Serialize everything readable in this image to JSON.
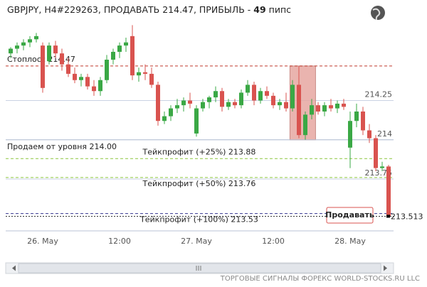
{
  "header": {
    "title": "GBPJPY, H4#229263, ПРОДАВАТЬ 214.47, ПРИБЫЛЬ -",
    "profit": 49,
    "unit": "пипс"
  },
  "chart_data": {
    "type": "candlestick",
    "categories": [
      null,
      null,
      null,
      null,
      null,
      "26. May",
      null,
      null,
      null,
      null,
      null,
      null,
      null,
      null,
      null,
      null,
      null,
      "12:00",
      null,
      null,
      null,
      null,
      null,
      null,
      null,
      null,
      null,
      null,
      null,
      "27. May",
      null,
      null,
      null,
      null,
      null,
      null,
      null,
      null,
      null,
      null,
      null,
      "12:00",
      null,
      null,
      null,
      null,
      null,
      null,
      null,
      null,
      null,
      null,
      null,
      "28. May",
      null,
      null,
      null,
      null,
      null,
      null
    ],
    "ohlc": [
      [
        214.55,
        214.59,
        214.52,
        214.58
      ],
      [
        214.58,
        214.62,
        214.55,
        214.6
      ],
      [
        214.6,
        214.64,
        214.57,
        214.62
      ],
      [
        214.62,
        214.66,
        214.59,
        214.64
      ],
      [
        214.64,
        214.68,
        214.62,
        214.66
      ],
      [
        214.6,
        214.62,
        214.3,
        214.33
      ],
      [
        214.5,
        214.62,
        214.48,
        214.6
      ],
      [
        214.6,
        214.63,
        214.52,
        214.55
      ],
      [
        214.55,
        214.58,
        214.44,
        214.48
      ],
      [
        214.48,
        214.52,
        214.4,
        214.42
      ],
      [
        214.42,
        214.46,
        214.36,
        214.38
      ],
      [
        214.38,
        214.42,
        214.34,
        214.4
      ],
      [
        214.4,
        214.42,
        214.32,
        214.34
      ],
      [
        214.34,
        214.38,
        214.28,
        214.31
      ],
      [
        214.31,
        214.4,
        214.28,
        214.38
      ],
      [
        214.38,
        214.54,
        214.36,
        214.51
      ],
      [
        214.51,
        214.58,
        214.48,
        214.56
      ],
      [
        214.56,
        214.62,
        214.52,
        214.6
      ],
      [
        214.6,
        214.65,
        214.56,
        214.62
      ],
      [
        214.66,
        214.73,
        214.38,
        214.41
      ],
      [
        214.41,
        214.46,
        214.37,
        214.43
      ],
      [
        214.43,
        214.48,
        214.38,
        214.42
      ],
      [
        214.42,
        214.46,
        214.33,
        214.35
      ],
      [
        214.35,
        214.37,
        214.09,
        214.12
      ],
      [
        214.12,
        214.18,
        214.1,
        214.15
      ],
      [
        214.15,
        214.22,
        214.12,
        214.2
      ],
      [
        214.2,
        214.26,
        214.17,
        214.22
      ],
      [
        214.22,
        214.27,
        214.18,
        214.25
      ],
      [
        214.25,
        214.3,
        214.2,
        214.23
      ],
      [
        214.04,
        214.22,
        214.02,
        214.2
      ],
      [
        214.2,
        214.26,
        214.18,
        214.24
      ],
      [
        214.24,
        214.28,
        214.2,
        214.27
      ],
      [
        214.27,
        214.34,
        214.24,
        214.31
      ],
      [
        214.31,
        214.33,
        214.18,
        214.21
      ],
      [
        214.21,
        214.26,
        214.19,
        214.24
      ],
      [
        214.24,
        214.26,
        214.2,
        214.22
      ],
      [
        214.22,
        214.32,
        214.2,
        214.3
      ],
      [
        214.3,
        214.38,
        214.28,
        214.35
      ],
      [
        214.35,
        214.37,
        214.22,
        214.25
      ],
      [
        214.25,
        214.33,
        214.23,
        214.31
      ],
      [
        214.31,
        214.34,
        214.26,
        214.28
      ],
      [
        214.28,
        214.3,
        214.2,
        214.22
      ],
      [
        214.22,
        214.26,
        214.19,
        214.24
      ],
      [
        214.24,
        214.3,
        214.18,
        214.2
      ],
      [
        214.2,
        214.38,
        214.18,
        214.35
      ],
      [
        214.35,
        214.47,
        214.01,
        214.03
      ],
      [
        214.03,
        214.18,
        214.0,
        214.16
      ],
      [
        214.16,
        214.26,
        214.13,
        214.22
      ],
      [
        214.22,
        214.24,
        214.16,
        214.18
      ],
      [
        214.18,
        214.24,
        214.15,
        214.22
      ],
      [
        214.22,
        214.26,
        214.18,
        214.2
      ],
      [
        214.2,
        214.25,
        214.17,
        214.23
      ],
      [
        214.23,
        214.26,
        214.19,
        214.21
      ],
      [
        213.95,
        214.18,
        213.82,
        214.12
      ],
      [
        214.12,
        214.23,
        214.08,
        214.18
      ],
      [
        214.18,
        214.21,
        214.03,
        214.06
      ],
      [
        214.06,
        214.1,
        213.98,
        214.01
      ],
      [
        214.01,
        214.03,
        213.8,
        213.82
      ],
      [
        213.82,
        213.86,
        213.8,
        213.83
      ],
      [
        213.83,
        213.84,
        213.51,
        213.513
      ]
    ],
    "up_color": "#3aa845",
    "down_color": "#d9534f",
    "ylim": [
      213.42,
      214.89
    ],
    "yticks": [
      214.25,
      214,
      213.75
    ],
    "grid": true,
    "levels": [
      {
        "label": "Стоплосс 214.47",
        "value": 214.47,
        "color": "#c0392b"
      },
      {
        "label": "Продаем от уровня 214.00",
        "value": 214.0,
        "color": "#b8c2d6"
      },
      {
        "label": "Тейкпрофит (+25%) 213.88",
        "value": 213.88,
        "color": "#8cc63f"
      },
      {
        "label": "Тейкпрофит (+50%) 213.76",
        "value": 213.76,
        "color": "#8cc63f"
      },
      {
        "label": "Тейкпрофит (+100%) 213.53",
        "value": 213.53,
        "color": "#33338f"
      }
    ],
    "zone": {
      "high": 214.47,
      "low": 214.0,
      "color": "#e6a7a1"
    },
    "current_price": 213.513
  },
  "sell_button": "Продавать",
  "footer": "ТОРГОВЫЕ СИГНАЛЫ ФОРЕКС WORLD-STOCKS.RU LLC"
}
